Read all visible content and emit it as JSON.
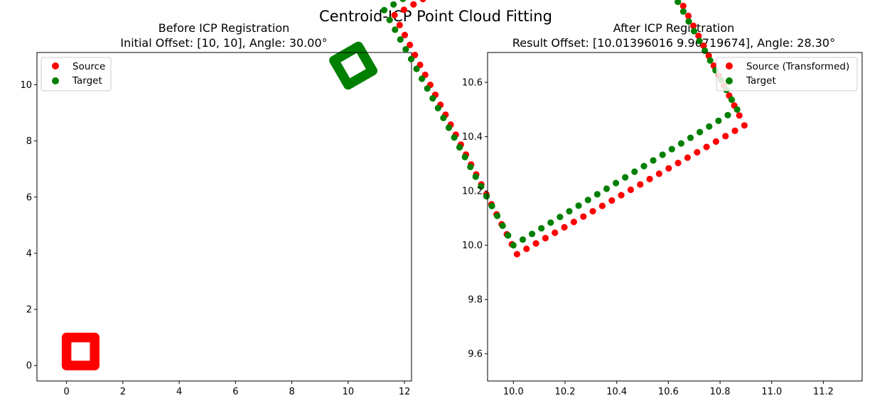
{
  "figure": {
    "suptitle": "Centroid-ICP Point Cloud Fitting"
  },
  "chart_data": [
    {
      "type": "scatter",
      "title": "Before ICP Registration\nInitial Offset: [10, 10], Angle: 30.00°",
      "title_line1": "Before ICP Registration",
      "title_line2": "Initial Offset: [10, 10], Angle: 30.00°",
      "xlim": [
        -1.05,
        12.25
      ],
      "ylim": [
        -0.55,
        11.15
      ],
      "xticks": [
        0,
        2,
        4,
        6,
        8,
        10,
        12
      ],
      "yticks": [
        0,
        2,
        4,
        6,
        8,
        10
      ],
      "grid": false,
      "legend_position": "upper left",
      "series": [
        {
          "name": "Source",
          "color": "#ff0000",
          "description": "square outline of points",
          "corners": [
            [
              0,
              0
            ],
            [
              1,
              0
            ],
            [
              1,
              1
            ],
            [
              0,
              1
            ]
          ],
          "rotation_deg": 0,
          "translation": [
            0,
            0
          ],
          "spacing": 0.06
        },
        {
          "name": "Target",
          "color": "#008000",
          "description": "rotated and offset square",
          "corners": [
            [
              0,
              0
            ],
            [
              1,
              0
            ],
            [
              1,
              1
            ],
            [
              0,
              1
            ]
          ],
          "rotation_deg": 30,
          "translation": [
            10,
            10
          ],
          "spacing": 0.06
        }
      ]
    },
    {
      "type": "scatter",
      "title": "After ICP Registration\nResult Offset: [10.01396016  9.96719674], Angle: 28.30°",
      "title_line1": "After ICP Registration",
      "title_line2": "Result Offset: [10.01396016  9.96719674], Angle: 28.30°",
      "xlim": [
        -0.1,
        1.35
      ],
      "ylim": [
        -0.5,
        0.71
      ],
      "x_offset": 10,
      "y_offset": 10,
      "xticks": [
        10.0,
        10.2,
        10.4,
        10.6,
        10.8,
        11.0,
        11.2
      ],
      "xtick_labels": [
        "10.0",
        "10.2",
        "10.4",
        "10.6",
        "10.8",
        "11.0",
        "11.2"
      ],
      "yticks": [
        9.6,
        9.8,
        10.0,
        10.2,
        10.4,
        10.6
      ],
      "ytick_labels": [
        "9.6",
        "9.8",
        "10.0",
        "10.2",
        "10.4",
        "10.6"
      ],
      "grid": false,
      "legend_position": "upper right",
      "series": [
        {
          "name": "Source (Transformed)",
          "color": "#ff0000",
          "description": "source square after estimated transform",
          "corners": [
            [
              0,
              0
            ],
            [
              1,
              0
            ],
            [
              1,
              1
            ],
            [
              0,
              1
            ]
          ],
          "rotation_deg": 28.3,
          "translation": [
            10.01396016,
            9.96719674
          ],
          "points_per_side": 24
        },
        {
          "name": "Target",
          "color": "#008000",
          "description": "target square with noise",
          "corners": [
            [
              0,
              0
            ],
            [
              1,
              0
            ],
            [
              1,
              1
            ],
            [
              0,
              1
            ]
          ],
          "rotation_deg": 30,
          "translation": [
            10,
            10
          ],
          "points_per_side": 24
        }
      ]
    }
  ]
}
